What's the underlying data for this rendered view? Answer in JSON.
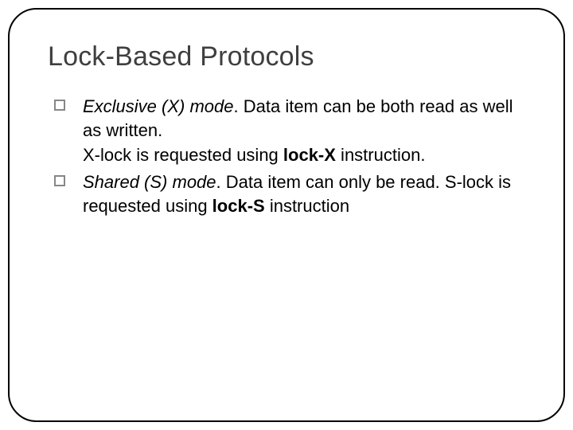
{
  "slide": {
    "title": "Lock-Based Protocols",
    "title_color": "#3f3f3f",
    "title_fontsize": 34,
    "body_fontsize": 22,
    "body_color": "#000000",
    "bullet_border_color": "#878787",
    "background_color": "#ffffff",
    "frame_border_color": "#000000",
    "frame_border_radius": 36,
    "bullets": [
      {
        "lead_italic": "Exclusive (X) mode",
        "text1": ". Data item can be both read as well as written.",
        "text2": "X-lock is requested using  ",
        "bold": "lock-X",
        "text3": " instruction."
      },
      {
        "lead_italic": "Shared (S) mode",
        "text1": ". Data item can only be read. S-lock is requested using  ",
        "bold": "lock-S",
        "text3": " instruction",
        "text2": ""
      }
    ]
  }
}
